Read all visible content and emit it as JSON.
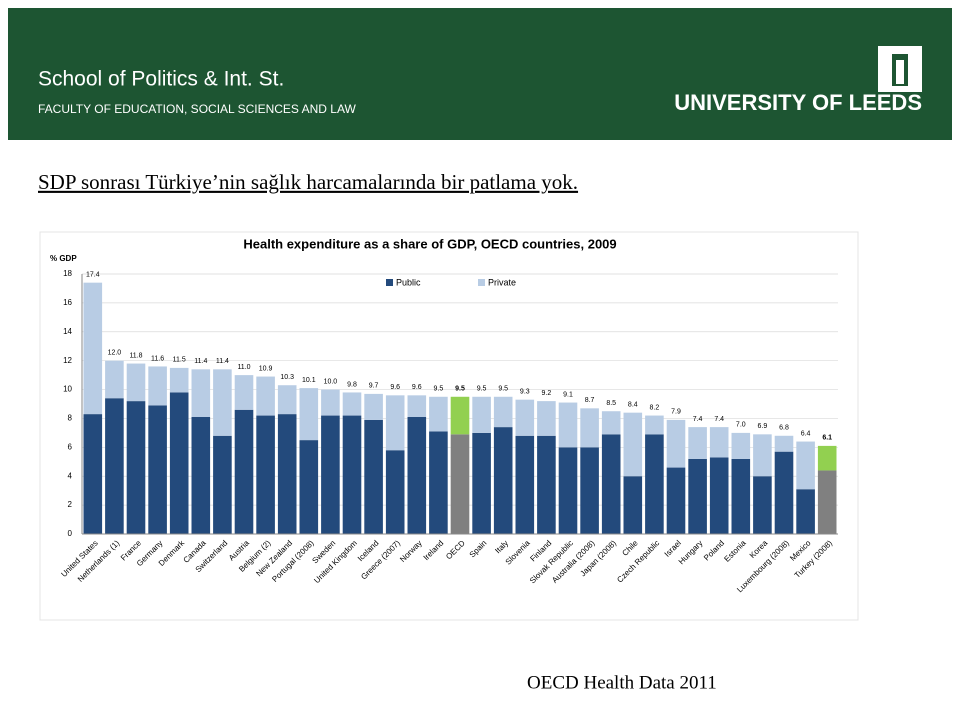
{
  "header": {
    "title": "School of Politics & Int. St.",
    "subtitle": "FACULTY OF EDUCATION, SOCIAL SCIENCES AND LAW",
    "logo": "UNIVERSITY OF LEEDS"
  },
  "heading": "SDP sonrası Türkiye’nin sağlık harcamalarında bir patlama yok.",
  "source": "OECD Health Data 2011",
  "chart_data": {
    "type": "stacked_bar",
    "title": "Health expenditure as a share of GDP, OECD countries, 2009",
    "y_label": "% GDP",
    "categories": [
      "United States",
      "Netherlands  (1)",
      "France",
      "Germany",
      "Denmark",
      "Canada",
      "Switzerland",
      "Austria",
      "Belgium (2)",
      "New Zealand",
      "Portugal (2008)",
      "Sweden",
      "United Kingdom",
      "Iceland",
      "Greece (2007)",
      "Norway",
      "Ireland",
      "OECD",
      "Spain",
      "Italy",
      "Slovenia",
      "Finland",
      "Slovak Republic",
      "Australia (2008)",
      "Japan (2008)",
      "Chile",
      "Czech Republic",
      "Israel",
      "Hungary",
      "Poland",
      "Estonia",
      "Korea",
      "Luxembourg (2008)",
      "Mexico",
      "Turkey (2008)"
    ],
    "series": [
      {
        "name": "Public",
        "color": "#234a7c",
        "highlight_color": "#808080",
        "values": [
          8.3,
          9.4,
          9.2,
          8.9,
          9.8,
          8.1,
          6.8,
          8.6,
          8.2,
          8.3,
          6.5,
          8.2,
          8.2,
          7.9,
          5.8,
          8.1,
          7.1,
          6.9,
          7.0,
          7.4,
          6.8,
          6.8,
          6.0,
          6.0,
          6.9,
          4.0,
          6.9,
          4.6,
          5.2,
          5.3,
          5.2,
          4.0,
          5.7,
          3.1,
          4.4
        ]
      },
      {
        "name": "Private",
        "color": "#b8cce4",
        "highlight_color": "#92d050",
        "values": [
          9.1,
          2.6,
          2.6,
          2.7,
          1.7,
          3.3,
          4.6,
          2.4,
          2.7,
          2.0,
          3.6,
          1.8,
          1.6,
          1.8,
          3.8,
          1.5,
          2.4,
          2.6,
          2.5,
          2.1,
          2.5,
          2.4,
          3.1,
          2.7,
          1.6,
          4.4,
          1.3,
          3.3,
          2.2,
          2.1,
          1.8,
          2.9,
          1.1,
          3.3,
          1.7
        ]
      }
    ],
    "total_labels": [
      "17.4",
      "12.0",
      "11.8",
      "11.6",
      "11.5",
      "11.4",
      "11.4",
      "11.0",
      "10.9",
      "10.3",
      "10.1",
      "10.0",
      "9.8",
      "9.7",
      "9.6",
      "9.6",
      "9.5",
      "9.5",
      "9.5",
      "9.5",
      "9.3",
      "9.2",
      "9.1",
      "8.7",
      "8.5",
      "8.4",
      "8.2",
      "7.9",
      "7.4",
      "7.4",
      "7.0",
      "6.9",
      "6.8",
      "6.4",
      "6.1"
    ],
    "highlighted": [
      17,
      34
    ],
    "ylim": [
      0,
      18
    ],
    "yticks": [
      0,
      2,
      4,
      6,
      8,
      10,
      12,
      14,
      16,
      18
    ],
    "grid": true
  }
}
